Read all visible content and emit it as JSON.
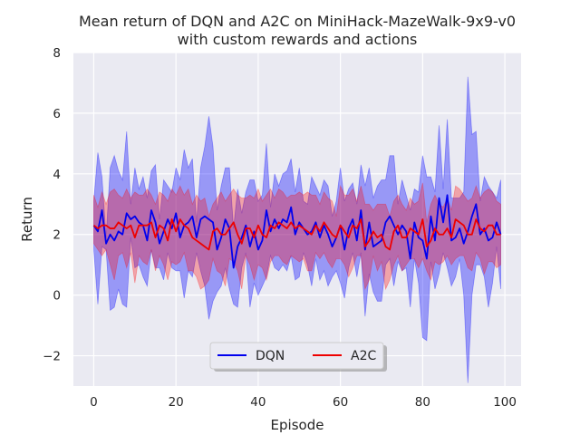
{
  "chart_data": {
    "type": "line",
    "title_line1": "Mean return of DQN and A2C on MiniHack-MazeWalk-9x9-v0",
    "title_line2": "with custom rewards and actions",
    "xlabel": "Episode",
    "ylabel": "Return",
    "xlim": [
      -4.95,
      103.95
    ],
    "ylim": [
      -3.0,
      8.0
    ],
    "xticks": [
      0,
      20,
      40,
      60,
      80,
      100
    ],
    "yticks": [
      -2,
      0,
      2,
      4,
      6,
      8
    ],
    "xtick_labels": [
      "0",
      "20",
      "40",
      "60",
      "80",
      "100"
    ],
    "ytick_labels": [
      "−2",
      "0",
      "2",
      "4",
      "6",
      "8"
    ],
    "grid": true,
    "legend_position": "lower center",
    "background": "#eaeaf2",
    "x": [
      0,
      1,
      2,
      3,
      4,
      5,
      6,
      7,
      8,
      9,
      10,
      11,
      12,
      13,
      14,
      15,
      16,
      17,
      18,
      19,
      20,
      21,
      22,
      23,
      24,
      25,
      26,
      27,
      28,
      29,
      30,
      31,
      32,
      33,
      34,
      35,
      36,
      37,
      38,
      39,
      40,
      41,
      42,
      43,
      44,
      45,
      46,
      47,
      48,
      49,
      50,
      51,
      52,
      53,
      54,
      55,
      56,
      57,
      58,
      59,
      60,
      61,
      62,
      63,
      64,
      65,
      66,
      67,
      68,
      69,
      70,
      71,
      72,
      73,
      74,
      75,
      76,
      77,
      78,
      79,
      80,
      81,
      82,
      83,
      84,
      85,
      86,
      87,
      88,
      89,
      90,
      91,
      92,
      93,
      94,
      95,
      96,
      97,
      98,
      99
    ],
    "series": [
      {
        "name": "DQN",
        "color": "#0000ee",
        "band_color": "#0000ff",
        "band_opacity": 0.35,
        "values": [
          2.3,
          2.1,
          2.8,
          1.7,
          2.0,
          1.8,
          2.1,
          2.0,
          2.7,
          2.5,
          2.6,
          2.4,
          2.3,
          1.8,
          2.8,
          2.4,
          1.7,
          2.1,
          2.5,
          2.2,
          2.7,
          1.9,
          2.3,
          2.4,
          2.6,
          1.9,
          2.5,
          2.6,
          2.5,
          2.4,
          1.5,
          1.9,
          2.5,
          2.2,
          0.9,
          1.6,
          1.9,
          2.3,
          1.6,
          2.1,
          1.5,
          1.8,
          2.8,
          2.1,
          2.5,
          2.2,
          2.5,
          2.4,
          2.9,
          2.0,
          2.4,
          2.2,
          2.0,
          2.1,
          2.4,
          1.9,
          2.3,
          2.0,
          1.6,
          1.9,
          2.3,
          1.5,
          2.2,
          2.5,
          1.8,
          2.8,
          1.5,
          2.4,
          1.6,
          1.7,
          1.8,
          2.4,
          2.6,
          2.3,
          2.0,
          2.3,
          2.1,
          1.2,
          2.4,
          1.9,
          1.8,
          1.2,
          2.6,
          1.8,
          3.2,
          2.4,
          3.3,
          1.8,
          1.9,
          2.2,
          1.7,
          2.1,
          2.6,
          3.0,
          2.0,
          2.2,
          1.8,
          1.9,
          2.4,
          2.0
        ],
        "lower": [
          1.5,
          -0.3,
          1.6,
          1.5,
          -0.5,
          -0.4,
          0.2,
          -0.3,
          -0.4,
          1.9,
          0.9,
          1.0,
          0.6,
          0.3,
          1.5,
          0.9,
          0.9,
          0.5,
          1.4,
          0.9,
          0.8,
          0.8,
          -0.1,
          0.8,
          0.6,
          1.4,
          0.8,
          0.3,
          -0.8,
          -0.2,
          0.1,
          0.3,
          0.9,
          0.2,
          -0.3,
          -0.4,
          0.9,
          1.4,
          -0.4,
          0.4,
          0.0,
          0.3,
          0.6,
          1.3,
          0.9,
          0.8,
          1.0,
          0.8,
          1.3,
          0.5,
          0.6,
          1.4,
          1.0,
          0.3,
          1.2,
          0.5,
          0.8,
          0.3,
          0.6,
          0.8,
          0.4,
          -0.1,
          0.9,
          1.4,
          0.6,
          1.4,
          -0.7,
          0.7,
          0.1,
          -0.2,
          -0.2,
          1.0,
          1.2,
          0.3,
          1.1,
          0.8,
          0.9,
          -0.4,
          1.2,
          0.4,
          -1.4,
          -1.5,
          1.1,
          0.2,
          0.7,
          1.4,
          0.9,
          0.3,
          0.6,
          1.2,
          0.0,
          -2.9,
          0.0,
          1.0,
          1.0,
          0.6,
          -0.4,
          0.4,
          1.6,
          0.2
        ],
        "upper": [
          3.1,
          4.7,
          3.9,
          1.9,
          4.2,
          4.6,
          4.1,
          3.8,
          5.4,
          3.0,
          4.2,
          3.5,
          3.9,
          3.2,
          4.1,
          4.3,
          2.5,
          3.8,
          3.6,
          3.4,
          4.2,
          3.8,
          4.8,
          4.2,
          4.5,
          2.4,
          4.2,
          4.9,
          5.9,
          4.9,
          2.8,
          3.6,
          4.2,
          4.2,
          2.2,
          3.5,
          2.7,
          3.4,
          3.8,
          3.8,
          3.1,
          3.3,
          5.0,
          2.9,
          4.0,
          3.6,
          4.0,
          4.1,
          4.5,
          3.4,
          4.2,
          3.1,
          3.0,
          3.9,
          3.6,
          3.3,
          3.8,
          3.6,
          2.6,
          3.1,
          4.2,
          3.1,
          3.5,
          3.7,
          3.0,
          4.3,
          3.6,
          4.2,
          3.2,
          3.6,
          3.8,
          3.8,
          4.6,
          4.6,
          3.0,
          3.8,
          3.3,
          2.8,
          3.5,
          3.4,
          4.6,
          3.9,
          3.9,
          3.4,
          5.6,
          3.5,
          5.8,
          3.2,
          3.2,
          3.2,
          3.4,
          7.2,
          5.3,
          5.4,
          3.1,
          3.9,
          3.6,
          3.4,
          3.2,
          3.8
        ]
      },
      {
        "name": "A2C",
        "color": "#ee0000",
        "band_color": "#ff0000",
        "band_opacity": 0.3,
        "values": [
          2.3,
          2.2,
          2.3,
          2.3,
          2.2,
          2.2,
          2.4,
          2.3,
          2.2,
          2.3,
          1.9,
          2.3,
          2.3,
          2.3,
          2.4,
          1.9,
          2.3,
          2.2,
          1.8,
          2.5,
          2.1,
          2.5,
          2.3,
          2.2,
          1.9,
          1.8,
          1.7,
          1.6,
          1.5,
          2.1,
          2.2,
          2.0,
          2.0,
          2.2,
          2.4,
          2.0,
          1.7,
          2.2,
          2.2,
          1.9,
          2.3,
          2.0,
          1.9,
          2.3,
          2.2,
          2.4,
          2.3,
          2.2,
          2.4,
          2.2,
          2.3,
          2.2,
          2.1,
          2.0,
          2.3,
          2.1,
          2.4,
          2.2,
          2.0,
          1.9,
          2.3,
          2.1,
          1.9,
          2.3,
          2.2,
          2.5,
          1.6,
          1.8,
          2.1,
          1.9,
          2.0,
          1.6,
          1.5,
          2.1,
          2.3,
          1.9,
          1.9,
          2.2,
          2.1,
          2.0,
          2.5,
          1.6,
          1.8,
          2.2,
          2.0,
          2.0,
          2.2,
          1.9,
          2.5,
          2.4,
          2.3,
          2.0,
          2.0,
          2.5,
          2.2,
          2.1,
          2.3,
          2.3,
          2.0,
          2.0
        ],
        "lower": [
          1.7,
          1.5,
          1.3,
          1.5,
          1.0,
          0.5,
          1.3,
          1.4,
          0.9,
          1.4,
          0.4,
          1.3,
          1.1,
          1.0,
          1.5,
          0.8,
          1.3,
          1.0,
          0.5,
          1.1,
          1.0,
          1.1,
          1.4,
          0.8,
          0.8,
          0.6,
          0.2,
          0.3,
          0.5,
          1.2,
          0.8,
          0.7,
          0.3,
          1.2,
          1.1,
          0.8,
          0.2,
          1.3,
          1.0,
          0.5,
          1.0,
          0.9,
          0.5,
          1.1,
          1.3,
          1.3,
          1.1,
          1.0,
          1.3,
          1.2,
          1.1,
          1.2,
          0.8,
          0.8,
          1.4,
          1.2,
          1.4,
          1.1,
          0.9,
          1.2,
          1.2,
          1.0,
          0.6,
          0.9,
          1.3,
          1.3,
          0.2,
          0.5,
          1.3,
          0.8,
          1.1,
          0.2,
          0.5,
          1.0,
          1.3,
          0.8,
          1.0,
          1.2,
          1.2,
          0.9,
          1.2,
          0.8,
          0.5,
          1.1,
          1.0,
          1.1,
          1.3,
          1.0,
          1.2,
          1.3,
          1.3,
          0.9,
          0.8,
          1.4,
          1.2,
          0.7,
          1.1,
          1.1,
          0.9,
          1.0
        ],
        "upper": [
          3.3,
          2.9,
          3.4,
          3.0,
          3.4,
          3.5,
          3.3,
          3.2,
          3.5,
          3.2,
          3.4,
          3.3,
          3.3,
          3.5,
          3.3,
          3.0,
          3.4,
          3.3,
          3.1,
          3.5,
          3.3,
          3.6,
          3.3,
          3.5,
          3.0,
          3.3,
          3.1,
          3.2,
          2.6,
          3.0,
          3.2,
          3.4,
          3.1,
          3.3,
          3.5,
          3.3,
          3.2,
          3.2,
          3.3,
          3.2,
          3.5,
          3.1,
          3.3,
          3.5,
          3.2,
          3.5,
          3.4,
          3.2,
          3.3,
          3.3,
          3.4,
          3.3,
          3.4,
          3.3,
          3.3,
          3.0,
          3.4,
          3.2,
          3.1,
          2.6,
          3.6,
          3.3,
          3.3,
          3.5,
          3.1,
          3.6,
          3.0,
          3.0,
          2.8,
          3.0,
          3.0,
          3.0,
          2.6,
          3.1,
          3.3,
          3.0,
          2.8,
          3.2,
          3.0,
          3.1,
          3.7,
          2.4,
          3.0,
          3.3,
          3.0,
          2.9,
          3.2,
          2.8,
          3.6,
          3.5,
          3.3,
          3.1,
          3.2,
          3.6,
          3.2,
          3.4,
          3.5,
          3.4,
          3.1,
          3.0
        ]
      }
    ]
  }
}
